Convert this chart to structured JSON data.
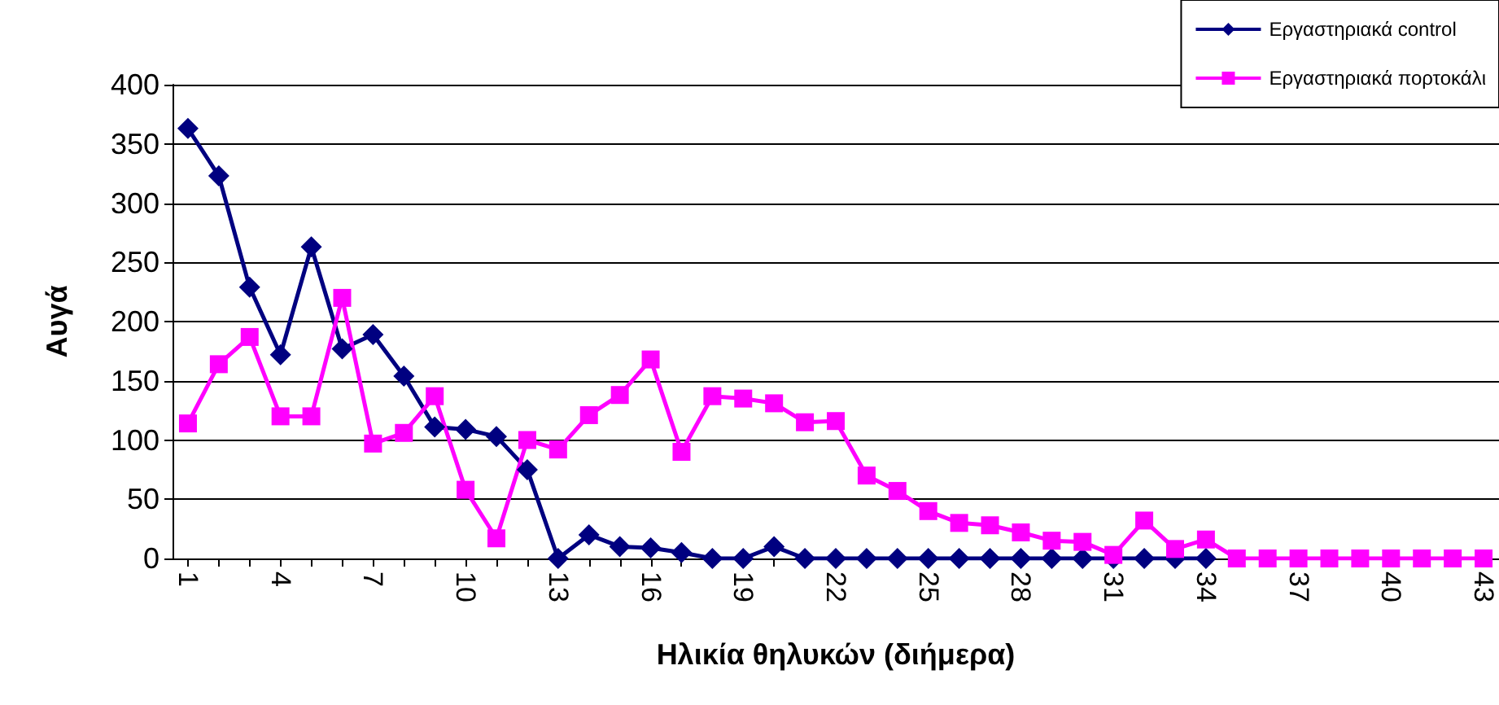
{
  "chart_data": {
    "type": "line",
    "xlabel": "Ηλικία θηλυκών (διήμερα)",
    "ylabel": "Αυγά",
    "categories": [
      "1",
      null,
      null,
      "4",
      null,
      null,
      "7",
      null,
      null,
      "10",
      null,
      null,
      "13",
      null,
      null,
      "16",
      null,
      null,
      "19",
      null,
      null,
      "22",
      null,
      null,
      "25",
      null,
      null,
      "28",
      null,
      null,
      "31",
      null,
      null,
      "34",
      null,
      null,
      "37",
      null,
      null,
      "40",
      null,
      null,
      "43"
    ],
    "series": [
      {
        "name": "Εργαστηριακά control",
        "color": "#000080",
        "marker": "diamond",
        "values": [
          363,
          323,
          229,
          172,
          263,
          177,
          189,
          154,
          111,
          109,
          103,
          75,
          0,
          20,
          10,
          9,
          5,
          0,
          0,
          10,
          0,
          0,
          0,
          0,
          0,
          0,
          0,
          0,
          0,
          0,
          0,
          0,
          0,
          0,
          null,
          null,
          null,
          null,
          null,
          null,
          null,
          null,
          null
        ]
      },
      {
        "name": "Εργαστηριακά πορτοκάλι",
        "color": "#ff00ff",
        "marker": "square",
        "values": [
          114,
          164,
          187,
          120,
          120,
          220,
          97,
          106,
          137,
          58,
          17,
          100,
          92,
          121,
          138,
          168,
          90,
          137,
          135,
          131,
          115,
          116,
          70,
          57,
          40,
          30,
          28,
          22,
          15,
          14,
          3,
          32,
          8,
          16,
          0,
          0,
          0,
          0,
          0,
          0,
          0,
          0,
          0
        ]
      }
    ],
    "ylim": [
      0,
      400
    ],
    "yticks": [
      0,
      50,
      100,
      150,
      200,
      250,
      300,
      350,
      400
    ],
    "grid": "y",
    "legend": "top right"
  }
}
